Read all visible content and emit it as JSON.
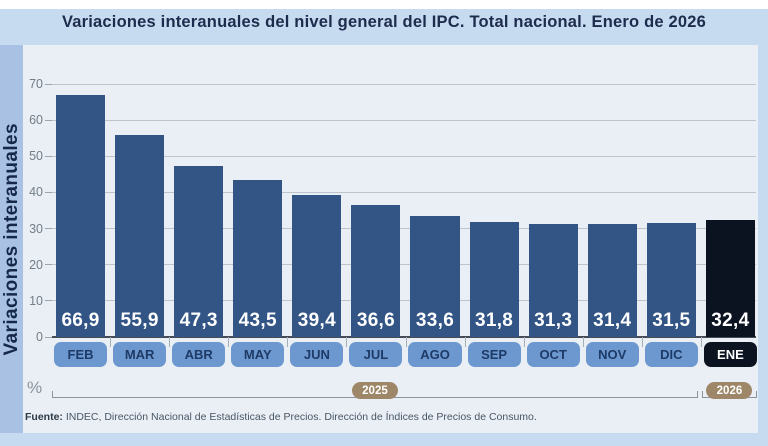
{
  "title": "Variaciones interanuales del nivel general del IPC. Total nacional. Enero de 2026",
  "chart_data": {
    "type": "bar",
    "categories": [
      "FEB",
      "MAR",
      "ABR",
      "MAY",
      "JUN",
      "JUL",
      "AGO",
      "SEP",
      "OCT",
      "NOV",
      "DIC",
      "ENE"
    ],
    "values": [
      66.9,
      55.9,
      47.3,
      43.5,
      39.4,
      36.6,
      33.6,
      31.8,
      31.3,
      31.4,
      31.5,
      32.4
    ],
    "value_labels": [
      "66,9",
      "55,9",
      "47,3",
      "43,5",
      "39,4",
      "36,6",
      "33,6",
      "31,8",
      "31,3",
      "31,4",
      "31,5",
      "32,4"
    ],
    "highlight_index": 11,
    "ylabel": "Variaciones interanuales",
    "xlabel": "",
    "unit": "%",
    "ylim": [
      0,
      70
    ],
    "yticks": [
      0,
      10,
      20,
      30,
      40,
      50,
      60,
      70
    ],
    "grid": true,
    "legend": null,
    "year_groups": [
      {
        "label": "2025",
        "from": 0,
        "to": 10
      },
      {
        "label": "2026",
        "from": 11,
        "to": 11
      }
    ],
    "colors": {
      "bar": "#325586",
      "bar_highlight": "#0b1220",
      "month_badge": "#6c98cf",
      "month_badge_text": "#1e3a66",
      "month_badge_highlight": "#0b1220",
      "month_badge_highlight_text": "#ffffff",
      "year_badge": "#9e8768",
      "panel": "#e9eff5",
      "background": "#c6daf0",
      "sidebar_strip": "#a9c1e3",
      "gridline": "#bcc4cd",
      "baseline": "#454c56",
      "axis_text": "#737d88"
    }
  },
  "footer": {
    "source_label": "Fuente:",
    "source_text": " INDEC, Dirección Nacional de Estadísticas de Precios. Dirección de Índices de Precios de Consumo."
  }
}
